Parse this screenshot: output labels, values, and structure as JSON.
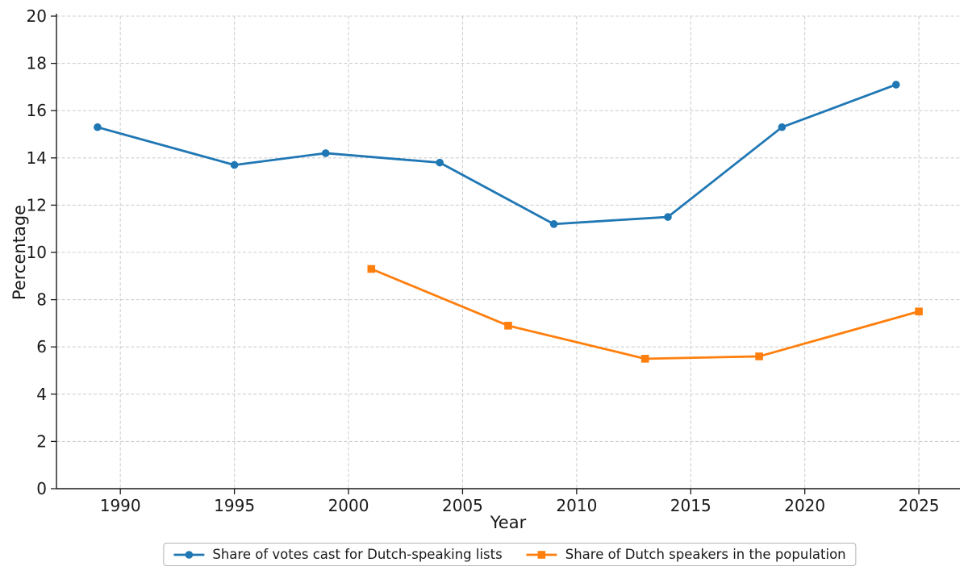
{
  "figure": {
    "background": "#ffffff"
  },
  "chart_data": {
    "type": "line",
    "title": "",
    "xlabel": "Year",
    "ylabel": "Percentage",
    "xlim": [
      1987.2,
      2026.8
    ],
    "ylim": [
      0,
      20
    ],
    "xticks": [
      1990,
      1995,
      2000,
      2005,
      2010,
      2015,
      2020,
      2025
    ],
    "yticks": [
      0,
      2,
      4,
      6,
      8,
      10,
      12,
      14,
      16,
      18,
      20
    ],
    "grid": true,
    "grid_style": "dashed",
    "legend_position": "bottom-center",
    "series": [
      {
        "name": "Share of votes cast for Dutch-speaking lists",
        "color": "#1f77b4",
        "marker": "circle",
        "x": [
          1989,
          1995,
          1999,
          2004,
          2009,
          2014,
          2019,
          2024
        ],
        "y": [
          15.3,
          13.7,
          14.2,
          13.8,
          11.2,
          11.5,
          15.3,
          17.1
        ]
      },
      {
        "name": "Share of Dutch speakers in the population",
        "color": "#ff7f0e",
        "marker": "square",
        "x": [
          2001,
          2007,
          2013,
          2018,
          2025
        ],
        "y": [
          9.3,
          6.9,
          5.5,
          5.6,
          7.5
        ]
      }
    ]
  },
  "style": {
    "grid_color": "#cfcfcf",
    "spine_color": "#1a1a1a",
    "tick_color": "#1a1a1a",
    "tick_label_color": "#1a1a1a",
    "line_width": 2.8,
    "marker_size": 9.6
  }
}
